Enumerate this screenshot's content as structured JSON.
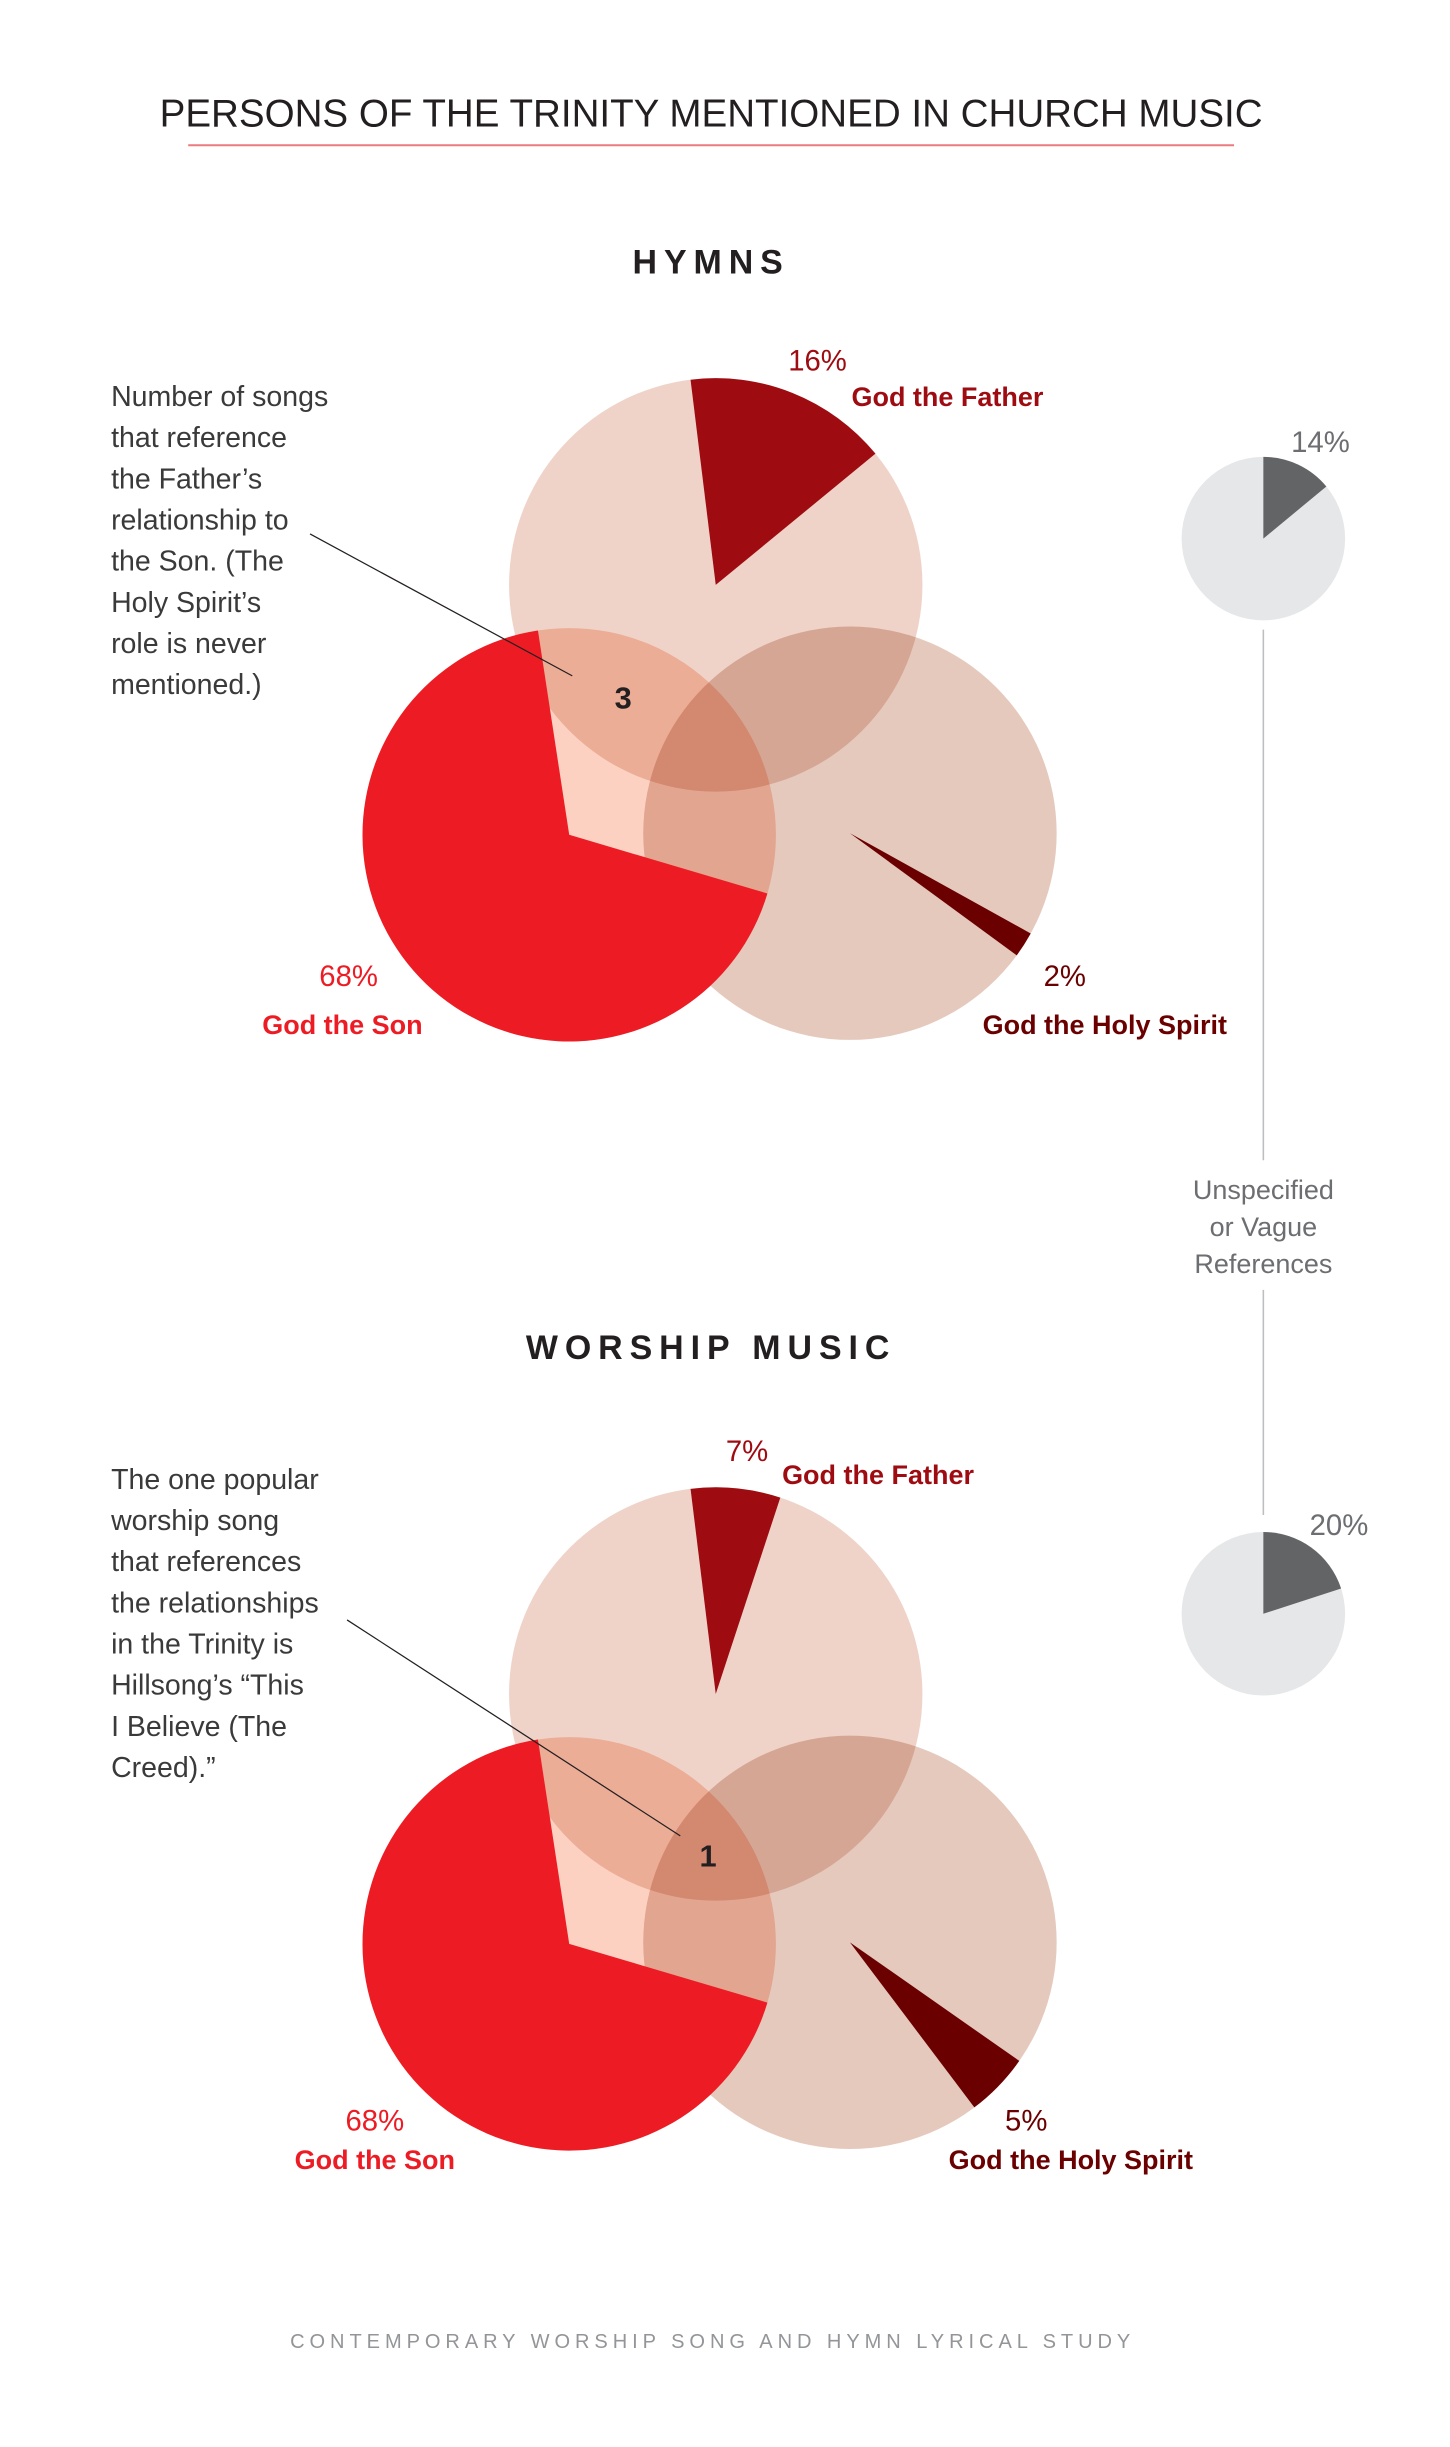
{
  "title": "PERSONS OF THE TRINITY MENTIONED IN CHURCH MUSIC",
  "footer": "CONTEMPORARY WORSHIP SONG AND HYMN LYRICAL STUDY",
  "colors": {
    "father": "#9e0b11",
    "son": "#ed1c24",
    "spirit": "#6b0000",
    "unspecified": "#636466",
    "accent_rule": "#ec7a7f"
  },
  "unspecified_label": [
    "Unspecified",
    "or Vague",
    "References"
  ],
  "chart_data": [
    {
      "type": "pie",
      "title": "HYMNS",
      "series": [
        {
          "name": "God the Father",
          "value": 16,
          "label": "16%"
        },
        {
          "name": "God the Son",
          "value": 68,
          "label": "68%"
        },
        {
          "name": "God the Holy Spirit",
          "value": 2,
          "label": "2%"
        }
      ],
      "overlap_count": "3",
      "annotation": [
        "Number of songs",
        "that reference",
        "the Father’s",
        "relationship to",
        "the Son. (The",
        "Holy Spirit’s",
        "role is never",
        "mentioned.)"
      ],
      "unspecified": {
        "value": 14,
        "label": "14%"
      }
    },
    {
      "type": "pie",
      "title": "WORSHIP MUSIC",
      "series": [
        {
          "name": "God the Father",
          "value": 7,
          "label": "7%"
        },
        {
          "name": "God the Son",
          "value": 68,
          "label": "68%"
        },
        {
          "name": "God the Holy Spirit",
          "value": 5,
          "label": "5%"
        }
      ],
      "overlap_count": "1",
      "annotation": [
        "The one popular",
        "worship song",
        "that references",
        "the relationships",
        "in the Trinity is",
        "Hillsong’s “This",
        "I Believe (The",
        "Creed).”"
      ],
      "unspecified": {
        "value": 20,
        "label": "20%"
      }
    }
  ]
}
